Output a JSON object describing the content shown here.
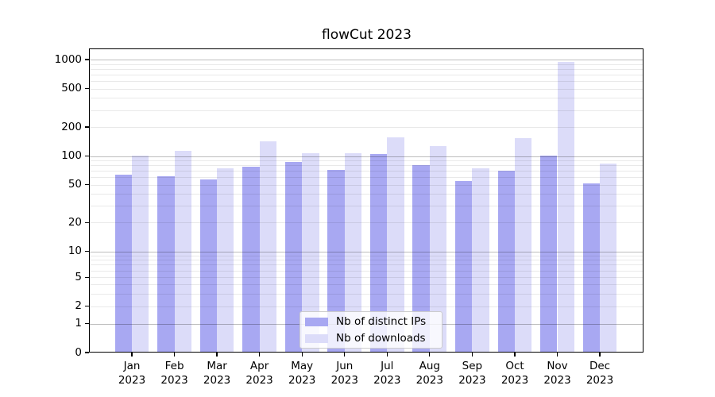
{
  "title": "flowCut 2023",
  "chart_data": {
    "type": "bar",
    "title": "flowCut 2023",
    "categories": [
      "Jan",
      "Feb",
      "Mar",
      "Apr",
      "May",
      "Jun",
      "Jul",
      "Aug",
      "Sep",
      "Oct",
      "Nov",
      "Dec"
    ],
    "xtick_year": "2023",
    "series": [
      {
        "name": "Nb of distinct IPs",
        "color": "#a8a8f2",
        "values": [
          64,
          62,
          57,
          77,
          87,
          72,
          105,
          81,
          55,
          71,
          102,
          52
        ]
      },
      {
        "name": "Nb of downloads",
        "color": "#dcdcf9",
        "values": [
          102,
          113,
          75,
          143,
          108,
          108,
          157,
          127,
          74,
          155,
          950,
          84
        ]
      }
    ],
    "yscale": "symlog",
    "yticks": [
      0,
      1,
      2,
      5,
      10,
      20,
      50,
      100,
      200,
      500,
      1000
    ],
    "ylim": [
      0,
      1300
    ],
    "xlabel": "",
    "ylabel": "",
    "grid": "both",
    "legend_position": "lower center",
    "grid_major_color": "#bdbdbd",
    "grid_minor_color": "#e8e8e8"
  }
}
